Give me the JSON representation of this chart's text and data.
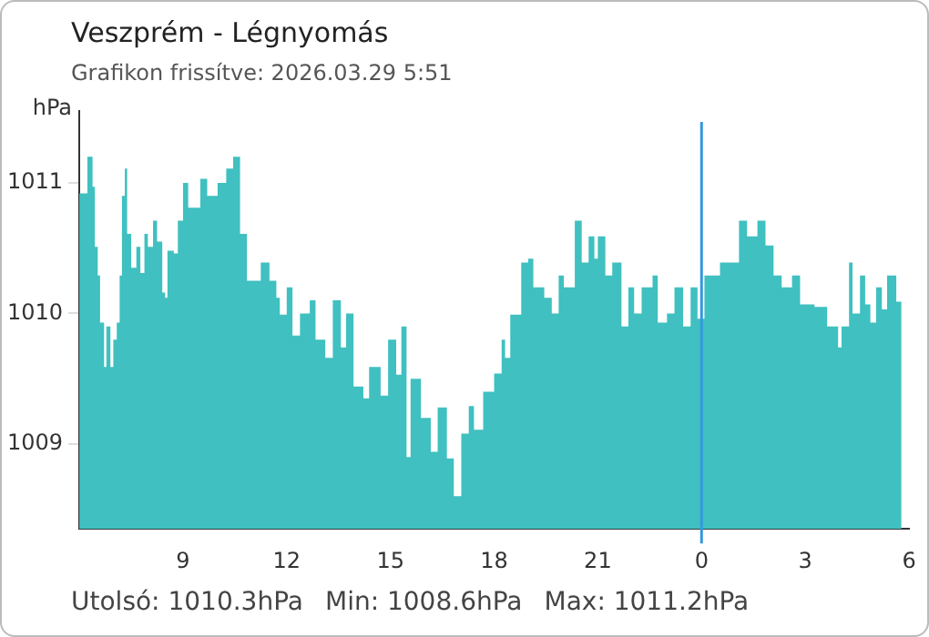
{
  "chart_data": {
    "type": "area",
    "title": "Veszprém - Légnyomás",
    "subtitle": "Grafikon frissítve: 2026.03.29 5:51",
    "ylabel": "hPa",
    "x": [
      "2026-03-28T06:00",
      "2026-03-28T06:14",
      "2026-03-28T06:23",
      "2026-03-28T06:27",
      "2026-03-28T06:32",
      "2026-03-28T06:36",
      "2026-03-28T06:43",
      "2026-03-28T06:47",
      "2026-03-28T06:54",
      "2026-03-28T06:59",
      "2026-03-28T07:05",
      "2026-03-28T07:10",
      "2026-03-28T07:14",
      "2026-03-28T07:19",
      "2026-03-28T07:23",
      "2026-03-28T07:30",
      "2026-03-28T07:39",
      "2026-03-28T07:46",
      "2026-03-28T07:53",
      "2026-03-28T07:59",
      "2026-03-28T08:08",
      "2026-03-28T08:15",
      "2026-03-28T08:24",
      "2026-03-28T08:29",
      "2026-03-28T08:33",
      "2026-03-28T08:44",
      "2026-03-28T08:51",
      "2026-03-28T09:00",
      "2026-03-28T09:09",
      "2026-03-28T09:30",
      "2026-03-28T09:42",
      "2026-03-28T10:00",
      "2026-03-28T10:15",
      "2026-03-28T10:27",
      "2026-03-28T10:39",
      "2026-03-28T10:51",
      "2026-03-28T11:06",
      "2026-03-28T11:15",
      "2026-03-28T11:30",
      "2026-03-28T11:42",
      "2026-03-28T11:48",
      "2026-03-28T12:00",
      "2026-03-28T12:10",
      "2026-03-28T12:23",
      "2026-03-28T12:40",
      "2026-03-28T12:50",
      "2026-03-28T13:07",
      "2026-03-28T13:20",
      "2026-03-28T13:34",
      "2026-03-28T13:43",
      "2026-03-28T13:56",
      "2026-03-28T14:13",
      "2026-03-28T14:23",
      "2026-03-28T14:43",
      "2026-03-28T14:56",
      "2026-03-28T15:10",
      "2026-03-28T15:19",
      "2026-03-28T15:28",
      "2026-03-28T15:35",
      "2026-03-28T15:53",
      "2026-03-28T16:10",
      "2026-03-28T16:22",
      "2026-03-28T16:38",
      "2026-03-28T16:50",
      "2026-03-28T17:03",
      "2026-03-28T17:16",
      "2026-03-28T17:25",
      "2026-03-28T17:41",
      "2026-03-28T18:00",
      "2026-03-28T18:13",
      "2026-03-28T18:19",
      "2026-03-28T18:28",
      "2026-03-28T18:47",
      "2026-03-28T18:59",
      "2026-03-28T19:08",
      "2026-03-28T19:27",
      "2026-03-28T19:40",
      "2026-03-28T19:52",
      "2026-03-28T20:01",
      "2026-03-28T20:20",
      "2026-03-28T20:32",
      "2026-03-28T20:44",
      "2026-03-28T20:54",
      "2026-03-28T21:00",
      "2026-03-28T21:13",
      "2026-03-28T21:25",
      "2026-03-28T21:41",
      "2026-03-28T21:53",
      "2026-03-28T22:03",
      "2026-03-28T22:16",
      "2026-03-28T22:35",
      "2026-03-28T22:44",
      "2026-03-28T23:00",
      "2026-03-28T23:13",
      "2026-03-28T23:28",
      "2026-03-28T23:41",
      "2026-03-28T23:53",
      "2026-03-29T00:05",
      "2026-03-29T00:32",
      "2026-03-29T01:05",
      "2026-03-29T01:19",
      "2026-03-29T01:37",
      "2026-03-29T01:51",
      "2026-03-29T02:05",
      "2026-03-29T02:19",
      "2026-03-29T02:37",
      "2026-03-29T02:51",
      "2026-03-29T03:16",
      "2026-03-29T03:38",
      "2026-03-29T03:57",
      "2026-03-29T04:03",
      "2026-03-29T04:16",
      "2026-03-29T04:22",
      "2026-03-29T04:35",
      "2026-03-29T04:44",
      "2026-03-29T04:53",
      "2026-03-29T05:03",
      "2026-03-29T05:13",
      "2026-03-29T05:22",
      "2026-03-29T05:38",
      "2026-03-29T05:47"
    ],
    "series": [
      {
        "color": "#40c0c0",
        "values": [
          1010.92,
          1011.2,
          1010.97,
          1010.51,
          1010.29,
          1009.93,
          1009.59,
          1009.9,
          1009.59,
          1009.8,
          1009.93,
          1010.29,
          1010.9,
          1011.11,
          1010.61,
          1010.35,
          1010.51,
          1010.31,
          1010.61,
          1010.51,
          1010.71,
          1010.55,
          1010.16,
          1010.12,
          1010.48,
          1010.46,
          1010.71,
          1011.0,
          1010.81,
          1011.03,
          1010.9,
          1011.0,
          1011.11,
          1011.2,
          1010.61,
          1010.25,
          1010.25,
          1010.39,
          1010.25,
          1010.12,
          1009.99,
          1010.2,
          1009.83,
          1010.0,
          1010.1,
          1009.8,
          1009.66,
          1010.1,
          1009.74,
          1010.0,
          1009.44,
          1009.35,
          1009.59,
          1009.37,
          1009.8,
          1009.53,
          1009.9,
          1008.9,
          1009.5,
          1009.2,
          1008.94,
          1009.28,
          1008.89,
          1008.6,
          1009.08,
          1009.29,
          1009.11,
          1009.4,
          1009.54,
          1009.8,
          1009.66,
          1009.99,
          1010.39,
          1010.42,
          1010.2,
          1010.12,
          1010.0,
          1010.29,
          1010.2,
          1010.71,
          1010.39,
          1010.59,
          1010.42,
          1010.59,
          1010.29,
          1010.39,
          1009.9,
          1010.2,
          1010.0,
          1010.2,
          1010.29,
          1009.93,
          1010.0,
          1010.2,
          1009.9,
          1010.2,
          1009.96,
          1010.29,
          1010.39,
          1010.71,
          1010.59,
          1010.71,
          1010.52,
          1010.29,
          1010.2,
          1010.29,
          1010.07,
          1010.05,
          1009.9,
          1009.74,
          1009.9,
          1010.39,
          1010.0,
          1010.29,
          1010.07,
          1009.93,
          1010.2,
          1010.03,
          1010.29,
          1010.09,
          1010.3
        ]
      }
    ],
    "xlim": [
      "2026-03-28T06:00",
      "2026-03-29T06:00"
    ],
    "xticks": [
      {
        "value": "2026-03-28T06:00",
        "label": null
      },
      {
        "value": "2026-03-28T09:00",
        "label": "9"
      },
      {
        "value": "2026-03-28T12:00",
        "label": "12"
      },
      {
        "value": "2026-03-28T15:00",
        "label": "15"
      },
      {
        "value": "2026-03-28T18:00",
        "label": "18"
      },
      {
        "value": "2026-03-28T21:00",
        "label": "21"
      },
      {
        "value": "2026-03-29T00:00",
        "label": "0"
      },
      {
        "value": "2026-03-29T03:00",
        "label": "3"
      },
      {
        "value": "2026-03-29T06:00",
        "label": "6"
      }
    ],
    "ylim": [
      1008.35,
      1011.55
    ],
    "yticks": [
      1009,
      1010,
      1011
    ],
    "ref_lines": [
      {
        "axis": "x",
        "value": "2026-03-29T00:00",
        "color": "#3399dd"
      }
    ],
    "grid": false,
    "legend": false,
    "annotations": [
      "Utolsó: 1010.3hPa",
      "Min: 1008.6hPa",
      "Max: 1011.2hPa"
    ]
  }
}
